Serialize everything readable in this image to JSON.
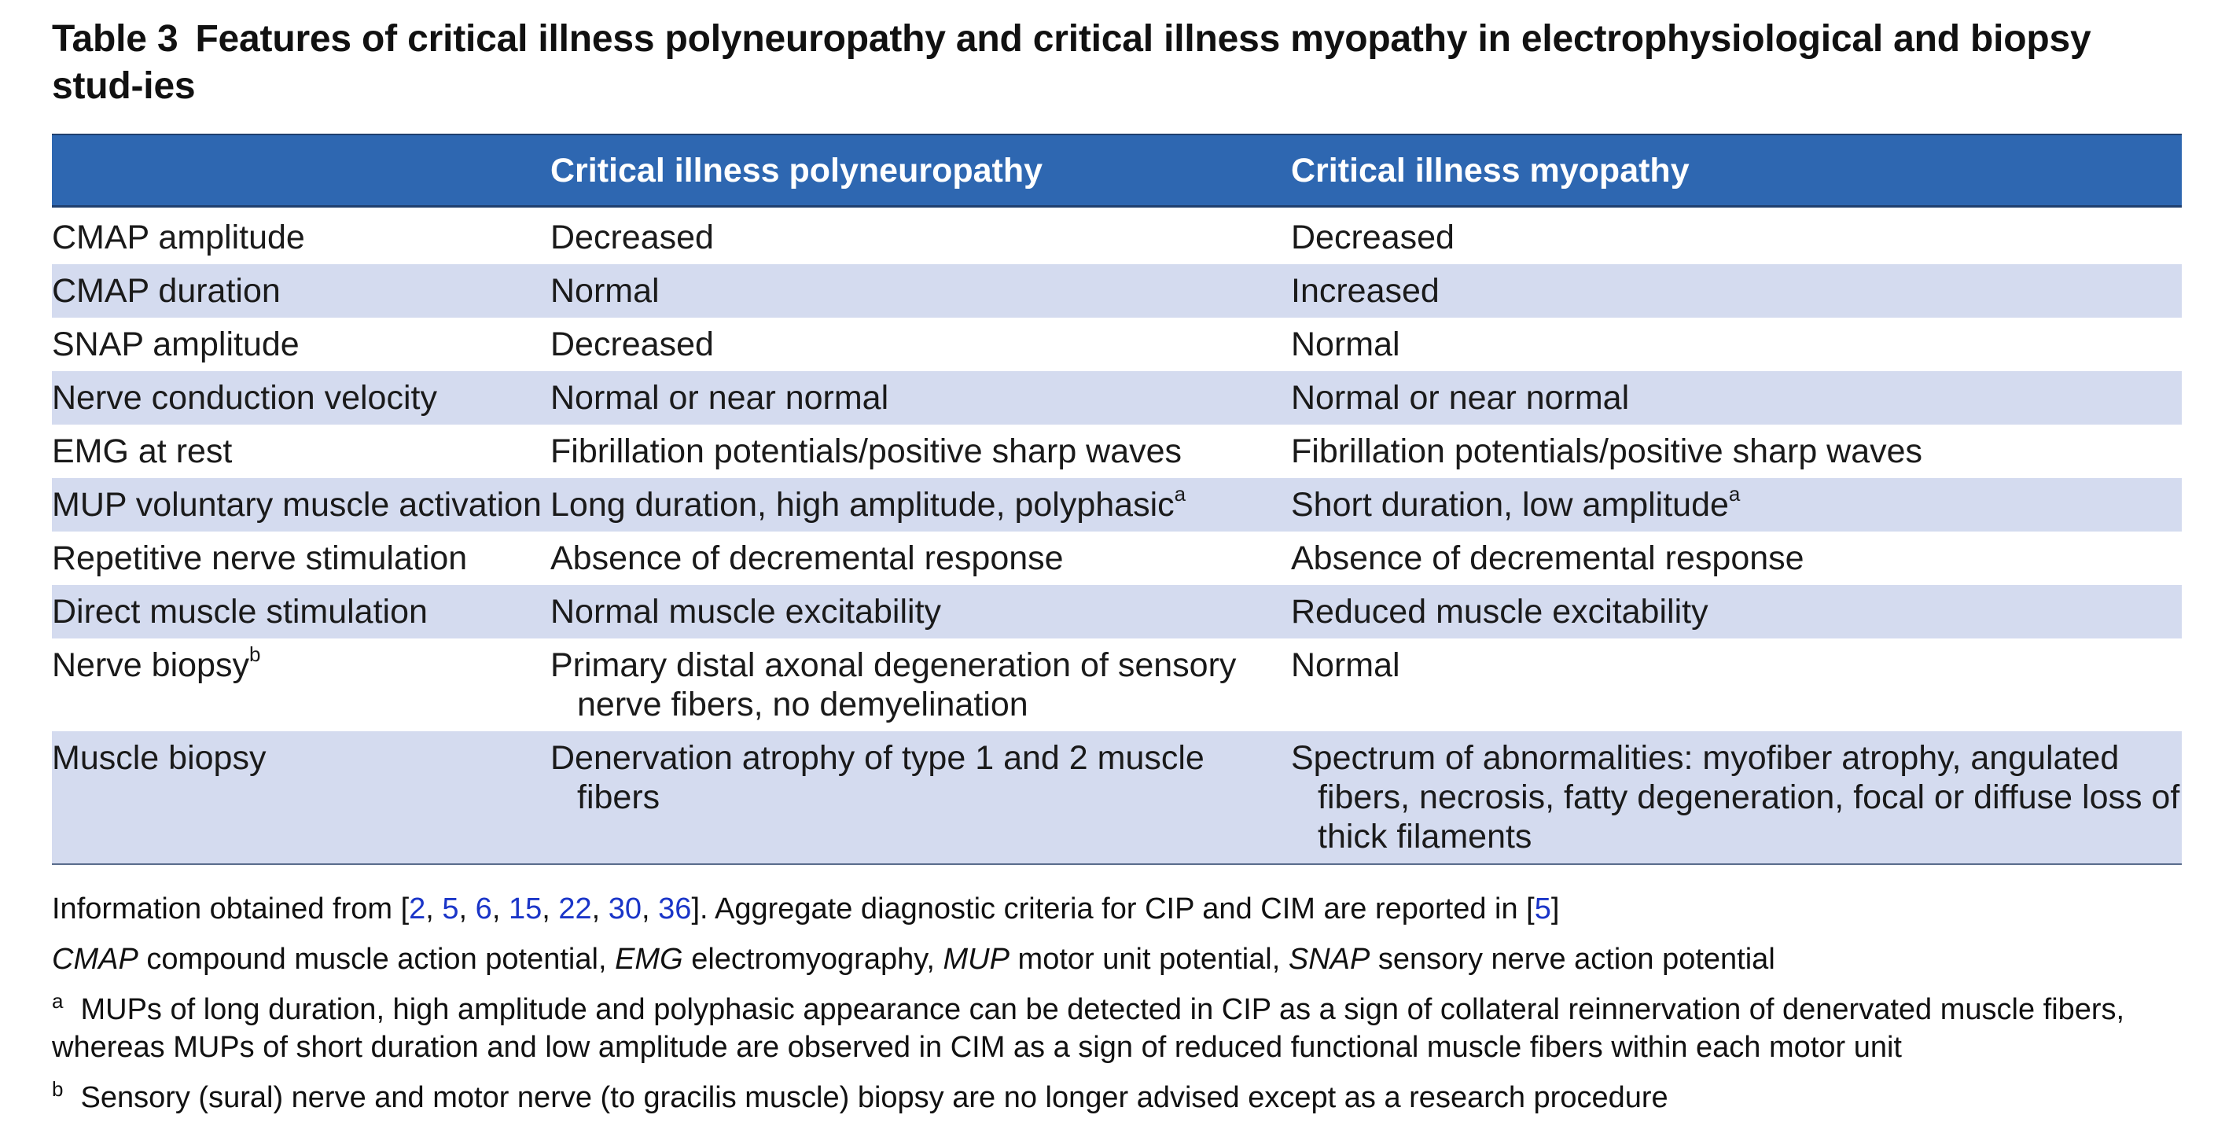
{
  "title": {
    "label": "Table 3",
    "text": "Features of critical illness polyneuropathy and critical illness myopathy in electrophysiological and biopsy stud-ies"
  },
  "table": {
    "headers": [
      "",
      "Critical illness polyneuropathy",
      "Critical illness myopathy"
    ],
    "rows": [
      {
        "feature": "CMAP amplitude",
        "cip": "Decreased",
        "cim": "Decreased"
      },
      {
        "feature": "CMAP duration",
        "cip": "Normal",
        "cim": "Increased"
      },
      {
        "feature": "SNAP amplitude",
        "cip": "Decreased",
        "cim": "Normal"
      },
      {
        "feature": "Nerve conduction velocity",
        "cip": "Normal or near normal",
        "cim": "Normal or near normal"
      },
      {
        "feature": "EMG at rest",
        "cip": "Fibrillation potentials/positive sharp waves",
        "cim": "Fibrillation potentials/positive sharp waves"
      },
      {
        "feature": "MUP voluntary muscle activation",
        "cip": "Long duration, high amplitude, polyphasic",
        "cip_sup": "a",
        "cim": "Short duration, low amplitude",
        "cim_sup": "a"
      },
      {
        "feature": "Repetitive nerve stimulation",
        "cip": "Absence of decremental response",
        "cim": "Absence of decremental response"
      },
      {
        "feature": "Direct muscle stimulation",
        "cip": "Normal muscle excitability",
        "cim": "Reduced muscle excitability"
      },
      {
        "feature": "Nerve biopsy",
        "feature_sup": "b",
        "cip": "Primary distal axonal degeneration of sensory nerve fibers, no demyelination",
        "cim": "Normal"
      },
      {
        "feature": "Muscle biopsy",
        "cip": "Denervation atrophy of type 1 and 2 muscle fibers",
        "cim": "Spectrum of abnormalities: myofiber atrophy, angulated fibers, necrosis, fatty degeneration, focal or diffuse loss of thick filaments"
      }
    ]
  },
  "notes": {
    "source_prefix": "Information obtained from [",
    "source_refs": [
      "2",
      "5",
      "6",
      "15",
      "22",
      "30",
      "36"
    ],
    "source_middle": "]. Aggregate diagnostic criteria for CIP and CIM are reported in [",
    "criteria_ref": "5",
    "source_suffix": "]",
    "abbreviations": [
      {
        "abbr": "CMAP",
        "def": "compound muscle action potential"
      },
      {
        "abbr": "EMG",
        "def": "electromyography"
      },
      {
        "abbr": "MUP",
        "def": "motor unit potential"
      },
      {
        "abbr": "SNAP",
        "def": "sensory nerve action potential"
      }
    ],
    "footnote_a_mark": "a",
    "footnote_a": "MUPs of long duration, high amplitude and polyphasic appearance can be detected in CIP as a sign of collateral reinnervation of denervated muscle fibers, whereas MUPs of short duration and low amplitude are observed in CIM as a sign of reduced functional muscle fibers within each motor unit",
    "footnote_b_mark": "b",
    "footnote_b": "Sensory (sural) nerve and motor nerve (to gracilis muscle) biopsy are no longer advised except as a research procedure"
  },
  "colors": {
    "header_bg": "#2e67b1",
    "shaded_row": "#d4dbef",
    "link": "#1a35c8"
  }
}
